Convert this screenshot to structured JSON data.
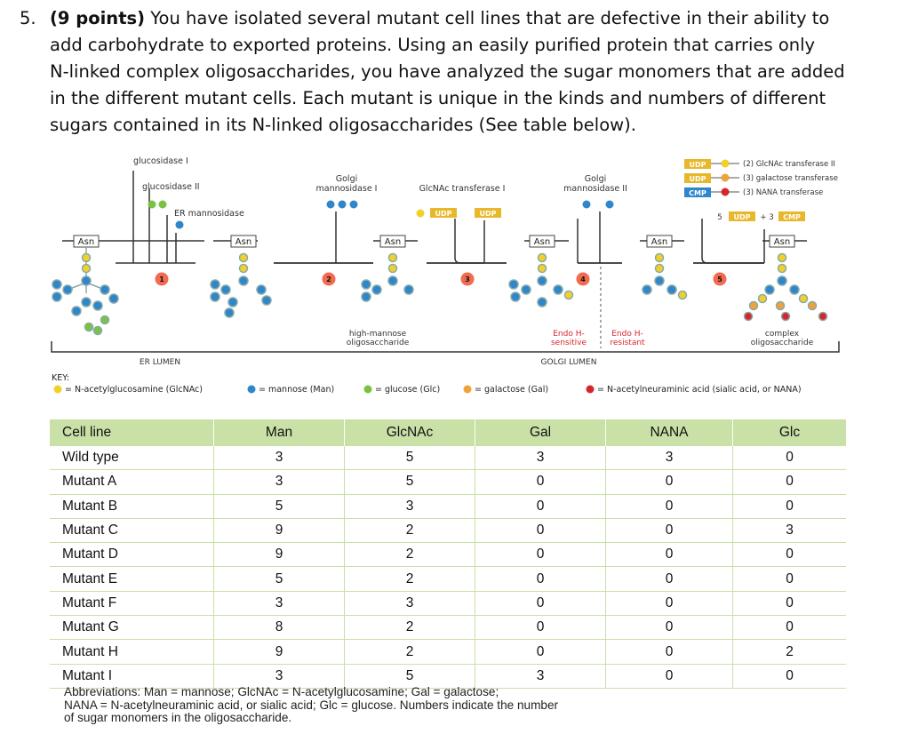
{
  "question": {
    "number": "5.",
    "points": "(9 points)",
    "line1": " You have isolated several mutant cell lines that are defective in their ability to",
    "line2": "add carbohydrate to exported proteins.  Using an easily purified protein that carries only",
    "line3": "N-linked complex oligosaccharides, you have analyzed the sugar monomers that are added",
    "line4": "in the different mutant cells.  Each mutant is unique in the kinds and numbers of different",
    "line5": "sugars contained in its N-linked oligosaccharides (See table below)."
  },
  "diagram": {
    "glucosidase1": "glucosidase I",
    "glucosidase2": "glucosidase II",
    "er_mannosidase": "ER mannosidase",
    "golgi_mann1_a": "Golgi",
    "golgi_mann1_b": "mannosidase I",
    "glcnac_t1": "GlcNAc transferase I",
    "golgi_mann2_a": "Golgi",
    "golgi_mann2_b": "mannosidase II",
    "udp": "UDP",
    "cmp": "CMP",
    "legend2": "(2) GlcNAc transferase II",
    "legend3a": "(3) galactose transferase",
    "legend3b": "(3) NANA transferase",
    "step5_prefix": "5",
    "step5_mid": "+ 3",
    "asn": "Asn",
    "step1": "1",
    "step2": "2",
    "step3": "3",
    "step4": "4",
    "step5": "5",
    "high_mannose_a": "high-mannose",
    "high_mannose_b": "oligosaccharide",
    "endo_sens_a": "Endo H-",
    "endo_sens_b": "sensitive",
    "endo_res_a": "Endo H-",
    "endo_res_b": "resistant",
    "complex_a": "complex",
    "complex_b": "oligosaccharide",
    "er_lumen": "ER LUMEN",
    "golgi_lumen": "GOLGI LUMEN",
    "key": "KEY:",
    "key_glcnac": "= N-acetylglucosamine (GlcNAc)",
    "key_man": "= mannose (Man)",
    "key_glc": "= glucose (Glc)",
    "key_gal": "= galactose (Gal)",
    "key_nana": "= N-acetylneuraminic acid (sialic acid, or NANA)",
    "colors": {
      "glcnac": "#f2d02a",
      "mannose": "#2f86c9",
      "glucose": "#7cc242",
      "galactose": "#f0a23a",
      "nana": "#d6262b",
      "step": "#f26b50",
      "udp_box": "#e8b72a",
      "cmp_box": "#2f86c9"
    }
  },
  "table": {
    "headers": [
      "Cell line",
      "Man",
      "GlcNAc",
      "Gal",
      "NANA",
      "Glc"
    ],
    "rows": [
      [
        "Wild type",
        "3",
        "5",
        "3",
        "3",
        "0"
      ],
      [
        "Mutant A",
        "3",
        "5",
        "0",
        "0",
        "0"
      ],
      [
        "Mutant B",
        "5",
        "3",
        "0",
        "0",
        "0"
      ],
      [
        "Mutant C",
        "9",
        "2",
        "0",
        "0",
        "3"
      ],
      [
        "Mutant D",
        "9",
        "2",
        "0",
        "0",
        "0"
      ],
      [
        "Mutant E",
        "5",
        "2",
        "0",
        "0",
        "0"
      ],
      [
        "Mutant F",
        "3",
        "3",
        "0",
        "0",
        "0"
      ],
      [
        "Mutant G",
        "8",
        "2",
        "0",
        "0",
        "0"
      ],
      [
        "Mutant H",
        "9",
        "2",
        "0",
        "0",
        "2"
      ],
      [
        "Mutant I",
        "3",
        "5",
        "3",
        "0",
        "0"
      ]
    ],
    "abbr1": "Abbreviations: Man = mannose; GlcNAc = N-acetylglucosamine; Gal = galactose;",
    "abbr2": "NANA = N-acetylneuraminic acid, or sialic acid; Glc = glucose. Numbers indicate the number",
    "abbr3": "of sugar monomers in the oligosaccharide."
  }
}
